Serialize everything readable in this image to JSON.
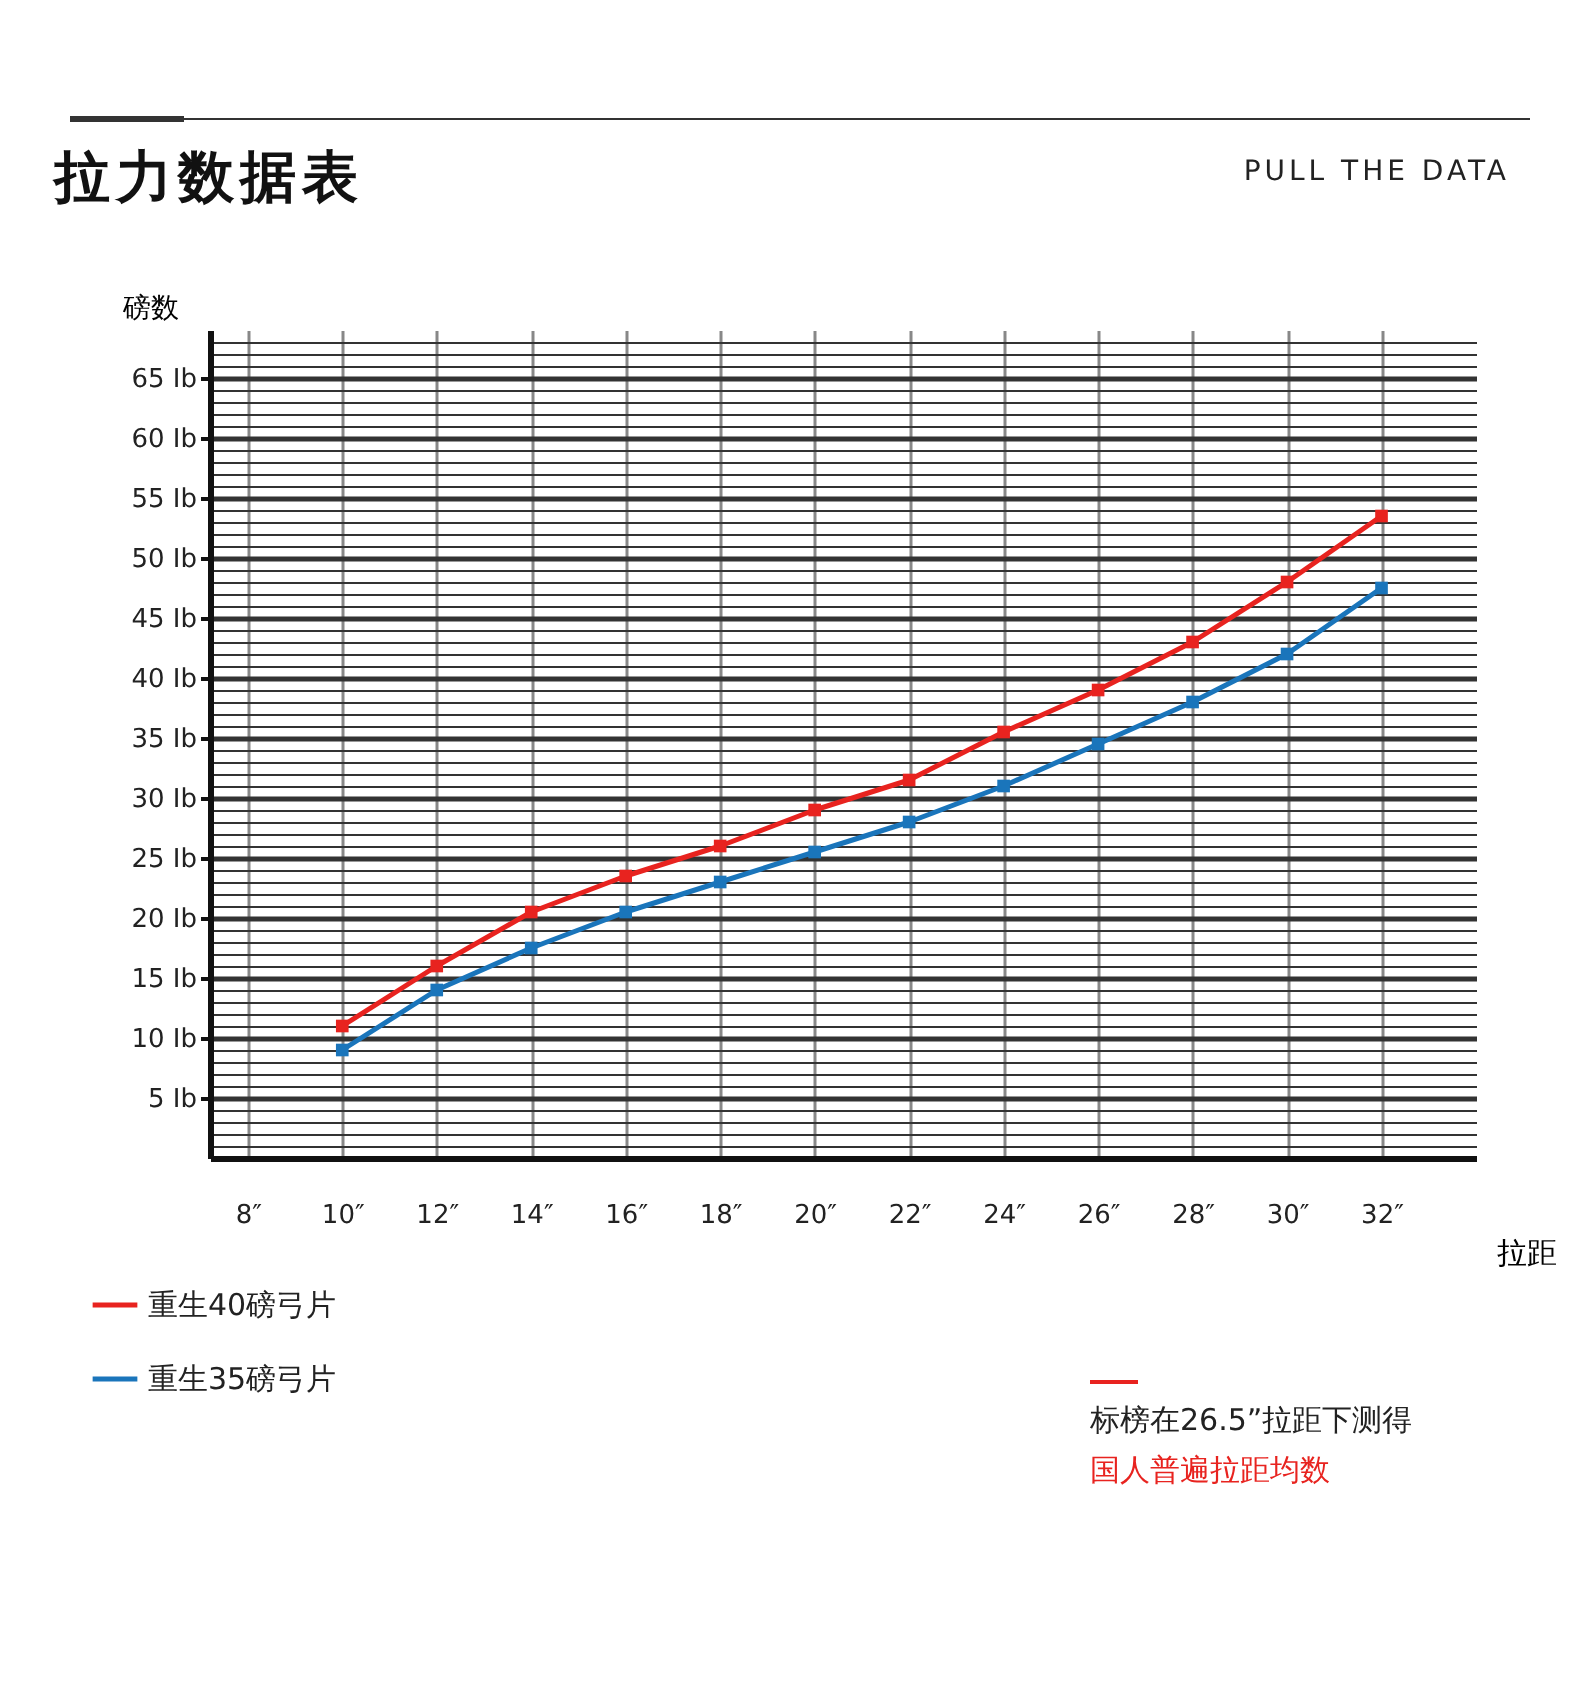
{
  "chart_data": {
    "type": "line",
    "title": "拉力数据表",
    "subtitle": "PULL THE DATA",
    "xlabel": "拉距",
    "ylabel": "磅数",
    "x": [
      10,
      12,
      14,
      16,
      18,
      20,
      22,
      24,
      26,
      28,
      30,
      32
    ],
    "series": [
      {
        "name": "重生40磅弓片",
        "color": "#e8231f",
        "values": [
          11,
          16,
          20.5,
          23.5,
          26,
          29,
          31.5,
          35.5,
          39,
          43,
          48,
          53.5
        ]
      },
      {
        "name": "重生35磅弓片",
        "color": "#1a75bb",
        "values": [
          9,
          14,
          17.5,
          20.5,
          23,
          25.5,
          28,
          31,
          34.5,
          38,
          42,
          47.5
        ]
      }
    ],
    "xlim": [
      7.2,
      34
    ],
    "ylim": [
      0,
      69
    ],
    "xticks": [
      {
        "value": 8,
        "label": "8″"
      },
      {
        "value": 10,
        "label": "10″"
      },
      {
        "value": 12,
        "label": "12″"
      },
      {
        "value": 14,
        "label": "14″"
      },
      {
        "value": 16,
        "label": "16″"
      },
      {
        "value": 18,
        "label": "18″"
      },
      {
        "value": 20,
        "label": "20″"
      },
      {
        "value": 22,
        "label": "22″"
      },
      {
        "value": 24,
        "label": "24″"
      },
      {
        "value": 26,
        "label": "26″"
      },
      {
        "value": 28,
        "label": "28″"
      },
      {
        "value": 30,
        "label": "30″"
      },
      {
        "value": 32,
        "label": "32″"
      }
    ],
    "yticks": [
      {
        "value": 1,
        "label": null
      },
      {
        "value": 2,
        "label": null
      },
      {
        "value": 3,
        "label": null
      },
      {
        "value": 4,
        "label": null
      },
      {
        "value": 5,
        "label": "5 Ib"
      },
      {
        "value": 6,
        "label": null
      },
      {
        "value": 7,
        "label": null
      },
      {
        "value": 8,
        "label": null
      },
      {
        "value": 9,
        "label": null
      },
      {
        "value": 10,
        "label": "10 Ib"
      },
      {
        "value": 11,
        "label": null
      },
      {
        "value": 12,
        "label": null
      },
      {
        "value": 13,
        "label": null
      },
      {
        "value": 14,
        "label": null
      },
      {
        "value": 15,
        "label": "15 Ib"
      },
      {
        "value": 16,
        "label": null
      },
      {
        "value": 17,
        "label": null
      },
      {
        "value": 18,
        "label": null
      },
      {
        "value": 19,
        "label": null
      },
      {
        "value": 20,
        "label": "20 Ib"
      },
      {
        "value": 21,
        "label": null
      },
      {
        "value": 22,
        "label": null
      },
      {
        "value": 23,
        "label": null
      },
      {
        "value": 24,
        "label": null
      },
      {
        "value": 25,
        "label": "25 Ib"
      },
      {
        "value": 26,
        "label": null
      },
      {
        "value": 27,
        "label": null
      },
      {
        "value": 28,
        "label": null
      },
      {
        "value": 29,
        "label": null
      },
      {
        "value": 30,
        "label": "30 Ib"
      },
      {
        "value": 31,
        "label": null
      },
      {
        "value": 32,
        "label": null
      },
      {
        "value": 33,
        "label": null
      },
      {
        "value": 34,
        "label": null
      },
      {
        "value": 35,
        "label": "35 Ib"
      },
      {
        "value": 36,
        "label": null
      },
      {
        "value": 37,
        "label": null
      },
      {
        "value": 38,
        "label": null
      },
      {
        "value": 39,
        "label": null
      },
      {
        "value": 40,
        "label": "40 Ib"
      },
      {
        "value": 41,
        "label": null
      },
      {
        "value": 42,
        "label": null
      },
      {
        "value": 43,
        "label": null
      },
      {
        "value": 44,
        "label": null
      },
      {
        "value": 45,
        "label": "45 Ib"
      },
      {
        "value": 46,
        "label": null
      },
      {
        "value": 47,
        "label": null
      },
      {
        "value": 48,
        "label": null
      },
      {
        "value": 49,
        "label": null
      },
      {
        "value": 50,
        "label": "50 Ib"
      },
      {
        "value": 51,
        "label": null
      },
      {
        "value": 52,
        "label": null
      },
      {
        "value": 53,
        "label": null
      },
      {
        "value": 54,
        "label": null
      },
      {
        "value": 55,
        "label": "55 Ib"
      },
      {
        "value": 56,
        "label": null
      },
      {
        "value": 57,
        "label": null
      },
      {
        "value": 58,
        "label": null
      },
      {
        "value": 59,
        "label": null
      },
      {
        "value": 60,
        "label": "60 Ib"
      },
      {
        "value": 61,
        "label": null
      },
      {
        "value": 62,
        "label": null
      },
      {
        "value": 63,
        "label": null
      },
      {
        "value": 64,
        "label": null
      },
      {
        "value": 65,
        "label": "65 Ib"
      },
      {
        "value": 66,
        "label": null
      },
      {
        "value": 67,
        "label": null
      },
      {
        "value": 68,
        "label": null
      }
    ],
    "grid": true,
    "legend": "bottom left",
    "marker": "square",
    "line_style": "solid",
    "annotations": [
      "标榜在26.5”拉距下测得",
      "国人普遍拉距均数"
    ]
  }
}
